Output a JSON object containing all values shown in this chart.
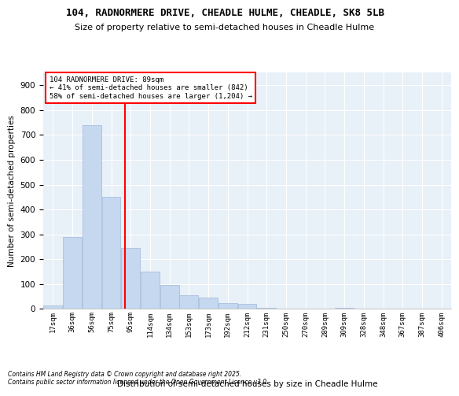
{
  "title1": "104, RADNORMERE DRIVE, CHEADLE HULME, CHEADLE, SK8 5LB",
  "title2": "Size of property relative to semi-detached houses in Cheadle Hulme",
  "xlabel": "Distribution of semi-detached houses by size in Cheadle Hulme",
  "ylabel": "Number of semi-detached properties",
  "bin_labels": [
    "17sqm",
    "36sqm",
    "56sqm",
    "75sqm",
    "95sqm",
    "114sqm",
    "134sqm",
    "153sqm",
    "173sqm",
    "192sqm",
    "212sqm",
    "231sqm",
    "250sqm",
    "270sqm",
    "289sqm",
    "309sqm",
    "328sqm",
    "348sqm",
    "367sqm",
    "387sqm",
    "406sqm"
  ],
  "bar_values": [
    15,
    290,
    740,
    450,
    245,
    150,
    95,
    55,
    45,
    25,
    20,
    5,
    0,
    0,
    0,
    5,
    0,
    0,
    0,
    0,
    0
  ],
  "bar_color": "#c5d8f0",
  "bar_edgecolor": "#a0b8d8",
  "red_line_x": 3.7,
  "annotation_title": "104 RADNORMERE DRIVE: 89sqm",
  "annotation_line1": "← 41% of semi-detached houses are smaller (842)",
  "annotation_line2": "58% of semi-detached houses are larger (1,204) →",
  "ylim": [
    0,
    950
  ],
  "yticks": [
    0,
    100,
    200,
    300,
    400,
    500,
    600,
    700,
    800,
    900
  ],
  "background_color": "#e8f0f8",
  "footer1": "Contains HM Land Registry data © Crown copyright and database right 2025.",
  "footer2": "Contains public sector information licensed under the Open Government Licence v3.0."
}
